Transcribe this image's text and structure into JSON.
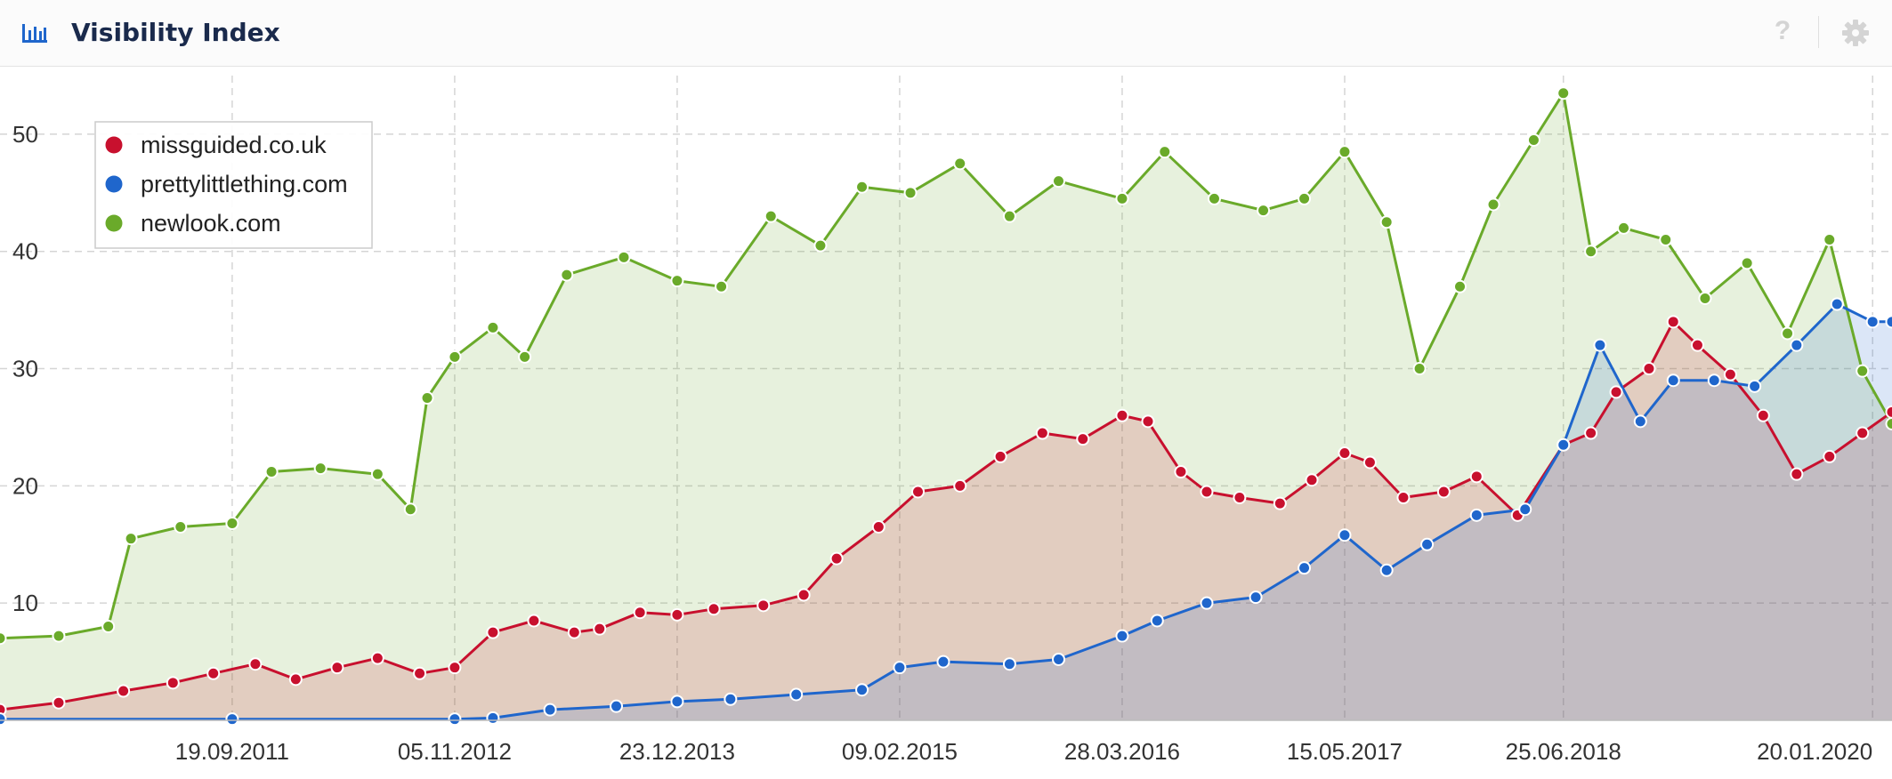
{
  "header": {
    "title": "Visibility Index",
    "icon": "bar-chart-icon",
    "help_icon": "question-icon",
    "help_label": "?",
    "settings_icon": "gear-icon"
  },
  "chart_data": {
    "type": "area",
    "title": "Visibility Index",
    "xlabel": "",
    "ylabel": "",
    "x_range": [
      "2010-07-15",
      "2020-02-25"
    ],
    "ylim": [
      0,
      55
    ],
    "y_ticks": [
      10,
      20,
      30,
      40,
      50
    ],
    "x_ticks": [
      "19.09.2011",
      "05.11.2012",
      "23.12.2013",
      "09.02.2015",
      "28.03.2016",
      "15.05.2017",
      "25.06.2018",
      "20.01.2020"
    ],
    "grid": true,
    "legend_position": "top-left",
    "series": [
      {
        "name": "missguided.co.uk",
        "color": "#c8102e",
        "points": [
          [
            "2010-07-15",
            0.9
          ],
          [
            "2010-11-01",
            1.5
          ],
          [
            "2011-03-01",
            2.5
          ],
          [
            "2011-06-01",
            3.2
          ],
          [
            "2011-08-15",
            4.0
          ],
          [
            "2011-11-01",
            4.8
          ],
          [
            "2012-01-15",
            3.5
          ],
          [
            "2012-04-01",
            4.5
          ],
          [
            "2012-06-15",
            5.3
          ],
          [
            "2012-09-01",
            4.0
          ],
          [
            "2012-11-05",
            4.5
          ],
          [
            "2013-01-15",
            7.5
          ],
          [
            "2013-04-01",
            8.5
          ],
          [
            "2013-06-15",
            7.5
          ],
          [
            "2013-08-01",
            7.8
          ],
          [
            "2013-10-15",
            9.2
          ],
          [
            "2013-12-23",
            9.0
          ],
          [
            "2014-03-01",
            9.5
          ],
          [
            "2014-06-01",
            9.8
          ],
          [
            "2014-08-15",
            10.7
          ],
          [
            "2014-10-15",
            13.8
          ],
          [
            "2015-01-01",
            16.5
          ],
          [
            "2015-03-15",
            19.5
          ],
          [
            "2015-06-01",
            20.0
          ],
          [
            "2015-08-15",
            22.5
          ],
          [
            "2015-11-01",
            24.5
          ],
          [
            "2016-01-15",
            24.0
          ],
          [
            "2016-03-28",
            26.0
          ],
          [
            "2016-05-15",
            25.5
          ],
          [
            "2016-07-15",
            21.2
          ],
          [
            "2016-09-01",
            19.5
          ],
          [
            "2016-11-01",
            19.0
          ],
          [
            "2017-01-15",
            18.5
          ],
          [
            "2017-03-15",
            20.5
          ],
          [
            "2017-05-15",
            22.8
          ],
          [
            "2017-07-01",
            22.0
          ],
          [
            "2017-09-01",
            19.0
          ],
          [
            "2017-11-15",
            19.5
          ],
          [
            "2018-01-15",
            20.8
          ],
          [
            "2018-04-01",
            17.5
          ],
          [
            "2018-06-25",
            23.5
          ],
          [
            "2018-08-15",
            24.5
          ],
          [
            "2018-10-01",
            28.0
          ],
          [
            "2018-12-01",
            30.0
          ],
          [
            "2019-01-15",
            34.0
          ],
          [
            "2019-03-01",
            32.0
          ],
          [
            "2019-05-01",
            29.5
          ],
          [
            "2019-07-01",
            26.0
          ],
          [
            "2019-09-01",
            21.0
          ],
          [
            "2019-11-01",
            22.5
          ],
          [
            "2020-01-01",
            24.5
          ],
          [
            "2020-02-25",
            26.3
          ]
        ]
      },
      {
        "name": "prettylittlething.com",
        "color": "#1f66cc",
        "points": [
          [
            "2010-07-15",
            0.1
          ],
          [
            "2011-09-19",
            0.1
          ],
          [
            "2012-11-05",
            0.1
          ],
          [
            "2013-01-15",
            0.2
          ],
          [
            "2013-05-01",
            0.9
          ],
          [
            "2013-09-01",
            1.2
          ],
          [
            "2013-12-23",
            1.6
          ],
          [
            "2014-04-01",
            1.8
          ],
          [
            "2014-08-01",
            2.2
          ],
          [
            "2014-12-01",
            2.6
          ],
          [
            "2015-02-09",
            4.5
          ],
          [
            "2015-05-01",
            5.0
          ],
          [
            "2015-09-01",
            4.8
          ],
          [
            "2015-12-01",
            5.2
          ],
          [
            "2016-03-28",
            7.2
          ],
          [
            "2016-06-01",
            8.5
          ],
          [
            "2016-09-01",
            10.0
          ],
          [
            "2016-12-01",
            10.5
          ],
          [
            "2017-03-01",
            13.0
          ],
          [
            "2017-05-15",
            15.8
          ],
          [
            "2017-08-01",
            12.8
          ],
          [
            "2017-10-15",
            15.0
          ],
          [
            "2018-01-15",
            17.5
          ],
          [
            "2018-04-15",
            18.0
          ],
          [
            "2018-06-25",
            23.5
          ],
          [
            "2018-09-01",
            32.0
          ],
          [
            "2018-11-15",
            25.5
          ],
          [
            "2019-01-15",
            29.0
          ],
          [
            "2019-04-01",
            29.0
          ],
          [
            "2019-06-15",
            28.5
          ],
          [
            "2019-09-01",
            32.0
          ],
          [
            "2019-11-15",
            35.5
          ],
          [
            "2020-01-20",
            34.0
          ],
          [
            "2020-02-25",
            34.0
          ]
        ]
      },
      {
        "name": "newlook.com",
        "color": "#6aaa2a",
        "points": [
          [
            "2010-07-15",
            7.0
          ],
          [
            "2010-11-01",
            7.2
          ],
          [
            "2011-02-01",
            8.0
          ],
          [
            "2011-03-15",
            15.5
          ],
          [
            "2011-06-15",
            16.5
          ],
          [
            "2011-09-19",
            16.8
          ],
          [
            "2011-12-01",
            21.2
          ],
          [
            "2012-03-01",
            21.5
          ],
          [
            "2012-06-15",
            21.0
          ],
          [
            "2012-08-15",
            18.0
          ],
          [
            "2012-09-15",
            27.5
          ],
          [
            "2012-11-05",
            31.0
          ],
          [
            "2013-01-15",
            33.5
          ],
          [
            "2013-03-15",
            31.0
          ],
          [
            "2013-06-01",
            38.0
          ],
          [
            "2013-09-15",
            39.5
          ],
          [
            "2013-12-23",
            37.5
          ],
          [
            "2014-03-15",
            37.0
          ],
          [
            "2014-06-15",
            43.0
          ],
          [
            "2014-09-15",
            40.5
          ],
          [
            "2014-12-01",
            45.5
          ],
          [
            "2015-03-01",
            45.0
          ],
          [
            "2015-06-01",
            47.5
          ],
          [
            "2015-09-01",
            43.0
          ],
          [
            "2015-12-01",
            46.0
          ],
          [
            "2016-03-28",
            44.5
          ],
          [
            "2016-06-15",
            48.5
          ],
          [
            "2016-09-15",
            44.5
          ],
          [
            "2016-12-15",
            43.5
          ],
          [
            "2017-03-01",
            44.5
          ],
          [
            "2017-05-15",
            48.5
          ],
          [
            "2017-08-01",
            42.5
          ],
          [
            "2017-10-01",
            30.0
          ],
          [
            "2017-12-15",
            37.0
          ],
          [
            "2018-02-15",
            44.0
          ],
          [
            "2018-05-01",
            49.5
          ],
          [
            "2018-06-25",
            53.5
          ],
          [
            "2018-08-15",
            40.0
          ],
          [
            "2018-10-15",
            42.0
          ],
          [
            "2019-01-01",
            41.0
          ],
          [
            "2019-03-15",
            36.0
          ],
          [
            "2019-06-01",
            39.0
          ],
          [
            "2019-08-15",
            33.0
          ],
          [
            "2019-11-01",
            41.0
          ],
          [
            "2020-01-01",
            29.8
          ],
          [
            "2020-02-25",
            25.3
          ]
        ]
      }
    ]
  }
}
